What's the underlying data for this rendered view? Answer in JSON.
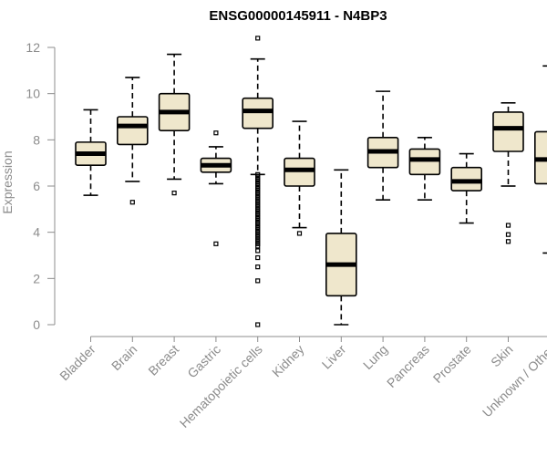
{
  "colors": {
    "box_fill": "#efe7cc",
    "axis": "#8c8c8c",
    "stroke": "#000000"
  },
  "chart_data": {
    "type": "boxplot",
    "title": "ENSG00000145911 - N4BP3",
    "xlabel": "",
    "ylabel": "Expression",
    "ylim": [
      0,
      12
    ],
    "yticks": [
      0,
      2,
      4,
      6,
      8,
      10,
      12
    ],
    "categories": [
      "Bladder",
      "Brain",
      "Breast",
      "Gastric",
      "Hematopoietic cells",
      "Kidney",
      "Liver",
      "Lung",
      "Pancreas",
      "Prostate",
      "Skin",
      "Unknown / Other"
    ],
    "boxes": [
      {
        "name": "Bladder",
        "whisker_low": 5.6,
        "q1": 6.9,
        "median": 7.4,
        "q3": 7.9,
        "whisker_high": 9.3,
        "outliers": []
      },
      {
        "name": "Brain",
        "whisker_low": 6.2,
        "q1": 7.8,
        "median": 8.6,
        "q3": 9.0,
        "whisker_high": 10.7,
        "outliers": [
          5.3
        ]
      },
      {
        "name": "Breast",
        "whisker_low": 6.3,
        "q1": 8.4,
        "median": 9.2,
        "q3": 10.0,
        "whisker_high": 11.7,
        "outliers": [
          5.7
        ]
      },
      {
        "name": "Gastric",
        "whisker_low": 6.1,
        "q1": 6.6,
        "median": 6.9,
        "q3": 7.2,
        "whisker_high": 7.7,
        "outliers": [
          8.3,
          3.5
        ]
      },
      {
        "name": "Hematopoietic cells",
        "whisker_low": 6.5,
        "q1": 8.5,
        "median": 9.25,
        "q3": 9.8,
        "whisker_high": 11.5,
        "outliers": [
          12.4,
          6.5,
          6.4,
          6.3,
          6.2,
          6.1,
          6.0,
          5.9,
          5.8,
          5.7,
          5.6,
          5.5,
          5.4,
          5.3,
          5.2,
          5.1,
          5.0,
          4.9,
          4.8,
          4.7,
          4.6,
          4.5,
          4.4,
          4.3,
          4.2,
          4.1,
          4.0,
          3.9,
          3.8,
          3.7,
          3.6,
          3.5,
          3.4,
          3.2,
          2.9,
          2.5,
          1.9,
          0.0
        ]
      },
      {
        "name": "Kidney",
        "whisker_low": 4.2,
        "q1": 6.0,
        "median": 6.7,
        "q3": 7.2,
        "whisker_high": 8.8,
        "outliers": [
          3.95
        ]
      },
      {
        "name": "Liver",
        "whisker_low": 0.0,
        "q1": 1.25,
        "median": 2.6,
        "q3": 3.95,
        "whisker_high": 6.7,
        "outliers": []
      },
      {
        "name": "Lung",
        "whisker_low": 5.4,
        "q1": 6.8,
        "median": 7.5,
        "q3": 8.1,
        "whisker_high": 10.1,
        "outliers": []
      },
      {
        "name": "Pancreas",
        "whisker_low": 5.4,
        "q1": 6.5,
        "median": 7.15,
        "q3": 7.6,
        "whisker_high": 8.1,
        "outliers": []
      },
      {
        "name": "Prostate",
        "whisker_low": 4.4,
        "q1": 5.8,
        "median": 6.2,
        "q3": 6.8,
        "whisker_high": 7.4,
        "outliers": []
      },
      {
        "name": "Skin",
        "whisker_low": 6.0,
        "q1": 7.5,
        "median": 8.5,
        "q3": 9.2,
        "whisker_high": 9.6,
        "outliers": [
          4.3,
          3.9,
          3.6
        ]
      },
      {
        "name": "Unknown / Other",
        "whisker_low": 3.1,
        "q1": 6.1,
        "median": 7.15,
        "q3": 8.35,
        "whisker_high": 11.2,
        "outliers": []
      }
    ]
  }
}
